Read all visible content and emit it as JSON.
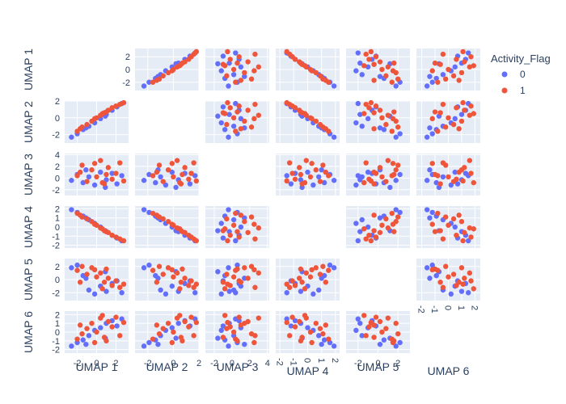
{
  "chart_data": {
    "type": "scatter",
    "subtype": "scatter-matrix",
    "diagonal_visible": false,
    "grid": true,
    "dimensions": [
      {
        "label": "UMAP 1",
        "range": [
          -3.3,
          3.3
        ],
        "ticks": [
          -2,
          0,
          2
        ],
        "y_ticks": [
          -2,
          0,
          2
        ]
      },
      {
        "label": "UMAP 2",
        "range": [
          -3.0,
          2.0
        ],
        "ticks": [
          -2,
          0,
          2
        ],
        "y_ticks": [
          -2,
          0,
          2
        ]
      },
      {
        "label": "UMAP 3",
        "range": [
          -3.0,
          4.2
        ],
        "ticks": [
          -2,
          0,
          2,
          4
        ],
        "y_ticks": [
          -2,
          0,
          2,
          4
        ]
      },
      {
        "label": "UMAP 4",
        "range": [
          -2.3,
          2.3
        ],
        "ticks": [
          -2,
          -1,
          0,
          1,
          2
        ],
        "y_ticks": [
          -2,
          -1,
          0,
          1,
          2
        ]
      },
      {
        "label": "UMAP 5",
        "range": [
          -3.2,
          3.2
        ],
        "ticks": [
          -2,
          0,
          2
        ],
        "y_ticks": [
          -2,
          0,
          2
        ]
      },
      {
        "label": "UMAP 6",
        "range": [
          -2.4,
          2.4
        ],
        "ticks": [
          -2,
          -1,
          0,
          1,
          2
        ],
        "y_ticks": [
          -2,
          -1,
          0,
          1,
          2
        ]
      }
    ],
    "legend": {
      "title": "Activity_Flag",
      "placement": "top-right",
      "entries": [
        {
          "label": "0",
          "color": "#636efa"
        },
        {
          "label": "1",
          "color": "#ef553b"
        }
      ]
    },
    "series": [
      {
        "name": "0",
        "color": "#636efa",
        "points": [
          [
            -2.6,
            -2.3,
            -0.4,
            1.9,
            1.8,
            -1.6
          ],
          [
            -2.0,
            -1.9,
            0.6,
            1.6,
            2.2,
            -1.2
          ],
          [
            -1.4,
            -1.4,
            -0.8,
            1.2,
            0.6,
            -0.9
          ],
          [
            -0.8,
            -1.0,
            0.2,
            0.8,
            -1.6,
            -0.4
          ],
          [
            -0.2,
            -0.6,
            -1.2,
            0.4,
            -2.2,
            0.2
          ],
          [
            0.4,
            -0.1,
            1.0,
            0.0,
            -1.0,
            0.5
          ],
          [
            1.0,
            0.4,
            -0.3,
            -0.5,
            -1.8,
            1.0
          ],
          [
            1.6,
            0.9,
            0.8,
            -0.9,
            -0.6,
            1.3
          ],
          [
            2.1,
            1.3,
            -1.0,
            -1.2,
            -0.2,
            0.7
          ],
          [
            2.6,
            1.7,
            0.4,
            -1.5,
            -2.0,
            1.5
          ],
          [
            -1.1,
            -1.2,
            1.4,
            1.0,
            0.2,
            -1.4
          ],
          [
            0.9,
            0.2,
            -1.6,
            -0.4,
            1.2,
            -0.7
          ]
        ]
      },
      {
        "name": "1",
        "color": "#ef553b",
        "points": [
          [
            -2.0,
            -1.6,
            0.4,
            1.5,
            1.4,
            -0.8
          ],
          [
            -1.5,
            -1.1,
            2.2,
            1.1,
            2.0,
            -0.2
          ],
          [
            -1.0,
            -0.8,
            -0.6,
            0.9,
            0.8,
            0.4
          ],
          [
            -0.5,
            -0.4,
            1.4,
            0.6,
            1.8,
            1.0
          ],
          [
            0.0,
            0.0,
            0.2,
            0.2,
            0.4,
            0.0
          ],
          [
            0.4,
            0.3,
            3.0,
            -0.1,
            1.0,
            1.6
          ],
          [
            0.8,
            0.6,
            -1.0,
            -0.4,
            -0.4,
            -0.6
          ],
          [
            1.2,
            0.9,
            1.8,
            -0.6,
            0.2,
            1.2
          ],
          [
            1.6,
            1.2,
            -0.2,
            -0.9,
            -0.9,
            0.6
          ],
          [
            2.0,
            1.4,
            0.8,
            -1.1,
            -0.2,
            1.7
          ],
          [
            2.4,
            1.6,
            2.6,
            -1.3,
            -1.2,
            -0.4
          ],
          [
            2.8,
            1.8,
            -0.5,
            -1.5,
            -0.7,
            1.1
          ],
          [
            -0.2,
            -0.1,
            2.5,
            0.3,
            1.5,
            -1.2
          ],
          [
            1.0,
            0.7,
            0.6,
            -0.5,
            1.6,
            -1.0
          ],
          [
            -1.7,
            -1.3,
            1.0,
            1.3,
            -0.4,
            0.8
          ],
          [
            0.6,
            0.5,
            -0.8,
            -0.2,
            -1.4,
            1.9
          ]
        ]
      }
    ]
  }
}
